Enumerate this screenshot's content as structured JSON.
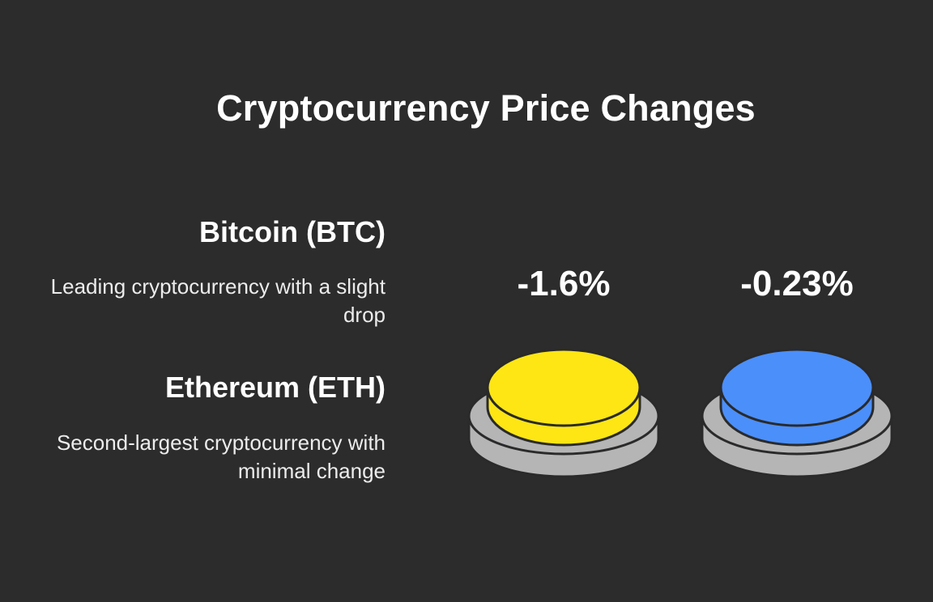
{
  "title": "Cryptocurrency Price Changes",
  "items": [
    {
      "name": "Bitcoin (BTC)",
      "description": "Leading cryptocurrency with a slight drop",
      "change": "-1.6%",
      "color": "#fde614"
    },
    {
      "name": "Ethereum (ETH)",
      "description": "Second-largest cryptocurrency with minimal change",
      "change": "-0.23%",
      "color": "#4b8ffb"
    }
  ],
  "colors": {
    "background": "#2c2c2c",
    "base": "#b5b5b5",
    "outline": "#2a2a2a",
    "text": "#ffffff"
  }
}
